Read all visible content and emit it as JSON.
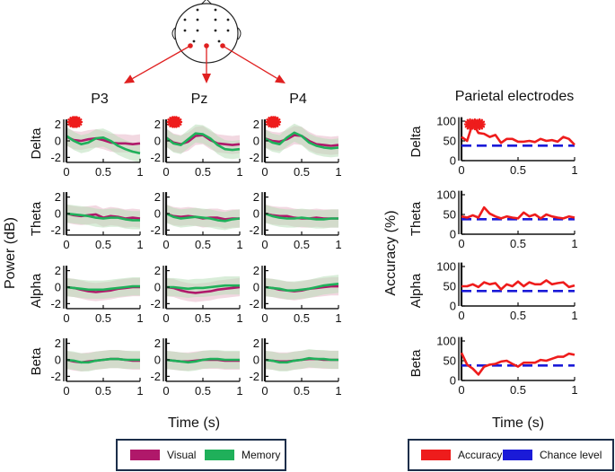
{
  "colors": {
    "visual": "#b0186a",
    "memory": "#1fb05a",
    "visual_band": "#e8b8c8",
    "memory_band": "#b9dfb9",
    "accuracy": "#ee1c1c",
    "chance": "#1a1ad8",
    "arrow": "#e02020",
    "star": "#ee1c1c",
    "legend_border": "#1c2e4a"
  },
  "head": {
    "selected_electrodes": [
      "P3",
      "Pz",
      "P4"
    ]
  },
  "figure": {
    "column_titles": [
      "P3",
      "Pz",
      "P4"
    ],
    "right_title": "Parietal electrodes",
    "bands": [
      "Delta",
      "Theta",
      "Alpha",
      "Beta"
    ],
    "left_ylabel": "Power (dB)",
    "right_ylabel": "Accuracy (%)",
    "xlabel": "Time (s)",
    "legend_left": [
      "Visual",
      "Memory"
    ],
    "legend_right": [
      "Accuracy",
      "Chance level"
    ]
  },
  "chart_data": [
    {
      "type": "line",
      "panel": "power",
      "xlim": [
        0,
        1
      ],
      "ylim": [
        -2.6,
        2.6
      ],
      "xticks": [
        0,
        0.5,
        1
      ],
      "xtick_labels": [
        "0",
        "0.5",
        "1"
      ],
      "yticks": [
        -2,
        0,
        2
      ],
      "ytick_labels": [
        "-2",
        "0",
        "2"
      ],
      "x": [
        0,
        0.1,
        0.2,
        0.3,
        0.4,
        0.5,
        0.6,
        0.7,
        0.8,
        0.9,
        1.0
      ],
      "electrodes": [
        "P3",
        "Pz",
        "P4"
      ],
      "series": {
        "Delta": {
          "P3": {
            "Visual": [
              0.5,
              0.1,
              0.0,
              0.2,
              0.3,
              0.1,
              -0.2,
              -0.3,
              -0.3,
              -0.4,
              -0.3
            ],
            "Memory": [
              0.6,
              0.0,
              -0.4,
              -0.2,
              0.3,
              0.4,
              0.0,
              -0.6,
              -1.0,
              -1.3,
              -1.5
            ]
          },
          "Pz": {
            "Visual": [
              0.4,
              -0.2,
              -0.4,
              -0.1,
              0.6,
              0.7,
              0.1,
              -0.3,
              -0.4,
              -0.5,
              -0.4
            ],
            "Memory": [
              0.4,
              -0.3,
              -0.5,
              0.2,
              0.9,
              0.8,
              0.3,
              -0.5,
              -1.0,
              -1.1,
              -1.0
            ]
          },
          "P4": {
            "Visual": [
              0.3,
              0.0,
              -0.1,
              0.2,
              0.7,
              0.6,
              0.0,
              -0.4,
              -0.5,
              -0.6,
              -0.5
            ],
            "Memory": [
              0.3,
              -0.2,
              -0.4,
              0.4,
              1.0,
              0.6,
              -0.2,
              -0.6,
              -0.8,
              -0.9,
              -0.8
            ]
          }
        },
        "Theta": {
          "P3": {
            "Visual": [
              0.0,
              -0.2,
              -0.3,
              -0.2,
              -0.1,
              -0.5,
              -0.3,
              -0.4,
              -0.6,
              -0.5,
              -0.6
            ],
            "Memory": [
              0.0,
              -0.1,
              -0.2,
              -0.3,
              -0.5,
              -0.6,
              -0.5,
              -0.5,
              -0.7,
              -0.8,
              -0.8
            ]
          },
          "Pz": {
            "Visual": [
              0.0,
              -0.3,
              -0.4,
              -0.3,
              -0.4,
              -0.6,
              -0.5,
              -0.5,
              -0.7,
              -0.6,
              -0.6
            ],
            "Memory": [
              0.0,
              -0.4,
              -0.6,
              -0.5,
              -0.4,
              -0.5,
              -0.6,
              -0.8,
              -0.9,
              -0.7,
              -0.6
            ]
          },
          "P4": {
            "Visual": [
              0.0,
              -0.2,
              -0.3,
              -0.3,
              -0.5,
              -0.6,
              -0.6,
              -0.5,
              -0.6,
              -0.6,
              -0.6
            ],
            "Memory": [
              0.0,
              -0.3,
              -0.5,
              -0.6,
              -0.6,
              -0.5,
              -0.6,
              -0.7,
              -0.7,
              -0.6,
              -0.6
            ]
          }
        },
        "Alpha": {
          "P3": {
            "Visual": [
              0.0,
              -0.1,
              -0.3,
              -0.5,
              -0.6,
              -0.5,
              -0.4,
              -0.2,
              -0.1,
              0.0,
              0.0
            ],
            "Memory": [
              0.0,
              -0.1,
              -0.2,
              -0.3,
              -0.3,
              -0.3,
              -0.2,
              -0.1,
              0.0,
              0.1,
              0.1
            ]
          },
          "Pz": {
            "Visual": [
              0.0,
              -0.1,
              -0.4,
              -0.6,
              -0.7,
              -0.6,
              -0.5,
              -0.3,
              -0.2,
              -0.1,
              0.0
            ],
            "Memory": [
              0.0,
              0.0,
              -0.1,
              -0.2,
              -0.1,
              -0.1,
              0.0,
              0.1,
              0.2,
              0.2,
              0.2
            ]
          },
          "P4": {
            "Visual": [
              0.0,
              -0.1,
              -0.3,
              -0.4,
              -0.5,
              -0.4,
              -0.2,
              -0.1,
              0.0,
              0.1,
              0.1
            ],
            "Memory": [
              0.0,
              -0.1,
              -0.2,
              -0.4,
              -0.4,
              -0.3,
              -0.2,
              0.0,
              0.2,
              0.3,
              0.4
            ]
          }
        },
        "Beta": {
          "P3": {
            "Visual": [
              0.0,
              -0.2,
              -0.3,
              -0.2,
              -0.1,
              0.0,
              0.1,
              0.1,
              0.0,
              -0.1,
              -0.1
            ],
            "Memory": [
              0.0,
              -0.1,
              -0.3,
              -0.3,
              -0.1,
              0.0,
              0.1,
              0.1,
              0.0,
              0.0,
              0.0
            ]
          },
          "Pz": {
            "Visual": [
              0.0,
              -0.1,
              -0.2,
              -0.2,
              -0.1,
              0.0,
              0.0,
              0.0,
              -0.1,
              -0.1,
              -0.1
            ],
            "Memory": [
              0.0,
              -0.1,
              -0.2,
              -0.3,
              -0.2,
              0.0,
              0.1,
              0.1,
              0.0,
              0.0,
              0.0
            ]
          },
          "P4": {
            "Visual": [
              0.0,
              -0.1,
              -0.2,
              -0.2,
              -0.1,
              0.0,
              0.1,
              0.1,
              0.0,
              0.0,
              0.0
            ],
            "Memory": [
              0.0,
              -0.1,
              -0.3,
              -0.3,
              -0.1,
              0.0,
              0.2,
              0.1,
              0.1,
              0.0,
              0.0
            ]
          }
        }
      },
      "band_halfwidth": 1.1,
      "significance_markers": {
        "Delta": {
          "P3": [
            0.04,
            0.14
          ],
          "Pz": [
            0.04,
            0.14
          ],
          "P4": [
            0.04,
            0.14
          ]
        }
      },
      "legend": [
        "Visual",
        "Memory"
      ],
      "xlabel": "Time (s)",
      "ylabel": "Power (dB)"
    },
    {
      "type": "line",
      "panel": "accuracy",
      "title": "Parietal electrodes",
      "xlim": [
        0,
        1
      ],
      "ylim": [
        0,
        110
      ],
      "xticks": [
        0,
        0.5,
        1
      ],
      "xtick_labels": [
        "0",
        "0.5",
        "1"
      ],
      "yticks": [
        0,
        50,
        100
      ],
      "ytick_labels": [
        "0",
        "50",
        "100"
      ],
      "chance_level": 38,
      "series": {
        "Delta": {
          "x": [
            0,
            0.05,
            0.1,
            0.15,
            0.2,
            0.25,
            0.3,
            0.35,
            0.4,
            0.45,
            0.5,
            0.55,
            0.6,
            0.65,
            0.7,
            0.75,
            0.8,
            0.85,
            0.9,
            0.95,
            1.0
          ],
          "y": [
            60,
            50,
            95,
            70,
            68,
            60,
            65,
            45,
            55,
            55,
            48,
            48,
            50,
            47,
            55,
            50,
            52,
            48,
            60,
            55,
            40
          ]
        },
        "Theta": {
          "x": [
            0,
            0.05,
            0.1,
            0.15,
            0.2,
            0.25,
            0.3,
            0.35,
            0.4,
            0.45,
            0.5,
            0.55,
            0.6,
            0.65,
            0.7,
            0.75,
            0.8,
            0.85,
            0.9,
            0.95,
            1.0
          ],
          "y": [
            45,
            42,
            48,
            42,
            68,
            52,
            45,
            40,
            45,
            42,
            40,
            55,
            45,
            50,
            40,
            50,
            45,
            42,
            40,
            45,
            42
          ]
        },
        "Alpha": {
          "x": [
            0,
            0.05,
            0.1,
            0.15,
            0.2,
            0.25,
            0.3,
            0.35,
            0.4,
            0.45,
            0.5,
            0.55,
            0.6,
            0.65,
            0.7,
            0.75,
            0.8,
            0.85,
            0.9,
            0.95,
            1.0
          ],
          "y": [
            50,
            50,
            55,
            48,
            60,
            55,
            58,
            42,
            55,
            50,
            62,
            50,
            60,
            55,
            55,
            65,
            55,
            58,
            60,
            48,
            52
          ]
        },
        "Beta": {
          "x": [
            0,
            0.05,
            0.1,
            0.15,
            0.2,
            0.25,
            0.3,
            0.35,
            0.4,
            0.45,
            0.5,
            0.55,
            0.6,
            0.65,
            0.7,
            0.75,
            0.8,
            0.85,
            0.9,
            0.95,
            1.0
          ],
          "y": [
            70,
            40,
            30,
            15,
            35,
            40,
            42,
            48,
            50,
            42,
            35,
            45,
            45,
            45,
            52,
            50,
            55,
            60,
            60,
            68,
            65
          ]
        }
      },
      "significance_markers": {
        "Delta": [
          0.06,
          0.16
        ]
      },
      "legend": [
        "Accuracy",
        "Chance level"
      ],
      "xlabel": "Time (s)",
      "ylabel": "Accuracy (%)"
    }
  ]
}
